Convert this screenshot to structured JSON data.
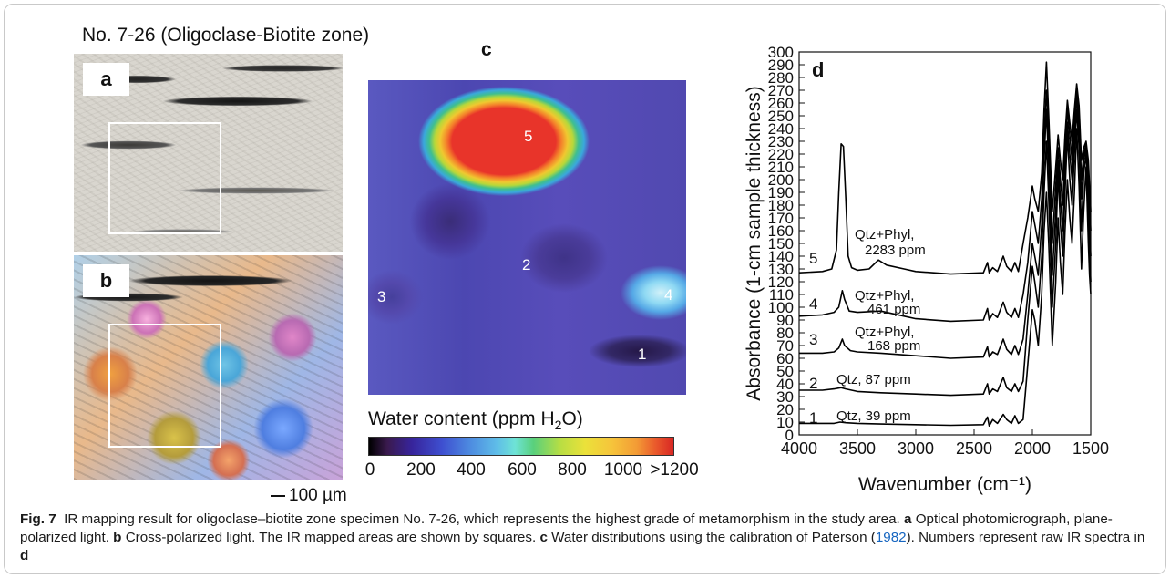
{
  "specimen_title": "No. 7-26 (Oligoclase-Biotite zone)",
  "panels": {
    "a": {
      "label": "a"
    },
    "b": {
      "label": "b"
    },
    "c": {
      "label": "c",
      "map_numbers": [
        "5",
        "2",
        "3",
        "4",
        "1"
      ]
    },
    "d": {
      "label": "d"
    }
  },
  "scale_bar": "100 µm",
  "colorbar": {
    "title_pre": "Water content (ppm H",
    "title_sub": "2",
    "title_post": "O)",
    "ticks": [
      "0",
      "200",
      "400",
      "600",
      "800",
      "1000",
      ">1200"
    ]
  },
  "chart_data": {
    "type": "line",
    "panel_label": "d",
    "xlabel": "Wavenumber (cm⁻¹)",
    "ylabel": "Absorbance (1-cm sample thickness)",
    "xlim": [
      4000,
      1500
    ],
    "ylim": [
      0,
      300
    ],
    "x_ticks": [
      4000,
      3500,
      3000,
      2500,
      2000,
      1500
    ],
    "y_ticks": [
      0,
      10,
      20,
      30,
      40,
      50,
      60,
      70,
      80,
      90,
      100,
      110,
      120,
      130,
      140,
      150,
      160,
      170,
      180,
      190,
      200,
      210,
      220,
      230,
      240,
      250,
      260,
      270,
      280,
      290,
      300
    ],
    "series": [
      {
        "name": "1",
        "annotation_line1": "Qtz, 39 ppm",
        "annotation_line2": "",
        "points": [
          [
            4000,
            9
          ],
          [
            3800,
            9
          ],
          [
            3700,
            9
          ],
          [
            3650,
            10
          ],
          [
            3600,
            9.5
          ],
          [
            3500,
            9
          ],
          [
            3300,
            8.5
          ],
          [
            3000,
            8
          ],
          [
            2700,
            7.5
          ],
          [
            2420,
            8
          ],
          [
            2385,
            14
          ],
          [
            2370,
            7
          ],
          [
            2340,
            12
          ],
          [
            2300,
            9
          ],
          [
            2250,
            16
          ],
          [
            2220,
            12
          ],
          [
            2180,
            9
          ],
          [
            2150,
            15
          ],
          [
            2120,
            9
          ],
          [
            2080,
            12
          ],
          [
            2040,
            55
          ],
          [
            2000,
            98
          ],
          [
            1980,
            90
          ],
          [
            1950,
            70
          ],
          [
            1920,
            110
          ],
          [
            1900,
            160
          ],
          [
            1880,
            190
          ],
          [
            1860,
            150
          ],
          [
            1830,
            70
          ],
          [
            1800,
            120
          ],
          [
            1780,
            170
          ],
          [
            1760,
            135
          ],
          [
            1740,
            110
          ],
          [
            1720,
            160
          ],
          [
            1700,
            200
          ],
          [
            1680,
            170
          ],
          [
            1660,
            150
          ],
          [
            1640,
            190
          ],
          [
            1620,
            240
          ],
          [
            1600,
            195
          ],
          [
            1580,
            130
          ],
          [
            1560,
            175
          ],
          [
            1540,
            210
          ],
          [
            1520,
            150
          ],
          [
            1510,
            125
          ],
          [
            1500,
            110
          ]
        ]
      },
      {
        "name": "2",
        "annotation_line1": "Qtz, 87 ppm",
        "annotation_line2": "",
        "points": [
          [
            4000,
            35
          ],
          [
            3800,
            35
          ],
          [
            3700,
            36
          ],
          [
            3640,
            37
          ],
          [
            3600,
            36
          ],
          [
            3500,
            34
          ],
          [
            3300,
            33
          ],
          [
            3000,
            32
          ],
          [
            2700,
            31
          ],
          [
            2420,
            32
          ],
          [
            2385,
            40
          ],
          [
            2370,
            32
          ],
          [
            2340,
            36
          ],
          [
            2300,
            34
          ],
          [
            2250,
            45
          ],
          [
            2220,
            37
          ],
          [
            2180,
            34
          ],
          [
            2150,
            40
          ],
          [
            2120,
            34
          ],
          [
            2080,
            42
          ],
          [
            2040,
            90
          ],
          [
            2000,
            132
          ],
          [
            1980,
            120
          ],
          [
            1950,
            100
          ],
          [
            1920,
            140
          ],
          [
            1900,
            190
          ],
          [
            1880,
            230
          ],
          [
            1860,
            185
          ],
          [
            1830,
            100
          ],
          [
            1800,
            150
          ],
          [
            1780,
            205
          ],
          [
            1760,
            165
          ],
          [
            1740,
            140
          ],
          [
            1720,
            190
          ],
          [
            1700,
            235
          ],
          [
            1680,
            200
          ],
          [
            1660,
            180
          ],
          [
            1640,
            220
          ],
          [
            1620,
            255
          ],
          [
            1600,
            225
          ],
          [
            1580,
            160
          ],
          [
            1560,
            205
          ],
          [
            1540,
            220
          ],
          [
            1520,
            180
          ],
          [
            1510,
            140
          ],
          [
            1500,
            120
          ]
        ]
      },
      {
        "name": "3",
        "annotation_line1": "Qtz+Phyl,",
        "annotation_line2": "168 ppm",
        "points": [
          [
            4000,
            64
          ],
          [
            3800,
            64
          ],
          [
            3700,
            65
          ],
          [
            3660,
            68
          ],
          [
            3630,
            75
          ],
          [
            3610,
            70
          ],
          [
            3560,
            66
          ],
          [
            3500,
            65
          ],
          [
            3300,
            64
          ],
          [
            3000,
            62
          ],
          [
            2700,
            60
          ],
          [
            2420,
            61
          ],
          [
            2385,
            69
          ],
          [
            2370,
            61
          ],
          [
            2340,
            65
          ],
          [
            2300,
            63
          ],
          [
            2250,
            75
          ],
          [
            2220,
            67
          ],
          [
            2180,
            63
          ],
          [
            2150,
            70
          ],
          [
            2120,
            63
          ],
          [
            2080,
            75
          ],
          [
            2040,
            110
          ],
          [
            2000,
            150
          ],
          [
            1980,
            140
          ],
          [
            1950,
            125
          ],
          [
            1920,
            165
          ],
          [
            1900,
            215
          ],
          [
            1880,
            255
          ],
          [
            1860,
            210
          ],
          [
            1830,
            125
          ],
          [
            1800,
            175
          ],
          [
            1780,
            215
          ],
          [
            1760,
            185
          ],
          [
            1740,
            160
          ],
          [
            1720,
            205
          ],
          [
            1700,
            245
          ],
          [
            1680,
            220
          ],
          [
            1660,
            200
          ],
          [
            1640,
            235
          ],
          [
            1620,
            265
          ],
          [
            1600,
            240
          ],
          [
            1580,
            185
          ],
          [
            1560,
            215
          ],
          [
            1540,
            225
          ],
          [
            1520,
            195
          ],
          [
            1510,
            160
          ],
          [
            1500,
            140
          ]
        ]
      },
      {
        "name": "4",
        "annotation_line1": "Qtz+Phyl,",
        "annotation_line2": "461 ppm",
        "points": [
          [
            4000,
            93
          ],
          [
            3800,
            94
          ],
          [
            3700,
            96
          ],
          [
            3660,
            100
          ],
          [
            3630,
            113
          ],
          [
            3610,
            106
          ],
          [
            3570,
            97
          ],
          [
            3500,
            96
          ],
          [
            3300,
            97
          ],
          [
            3100,
            93
          ],
          [
            3000,
            91
          ],
          [
            2700,
            89
          ],
          [
            2420,
            90
          ],
          [
            2385,
            99
          ],
          [
            2370,
            90
          ],
          [
            2340,
            95
          ],
          [
            2300,
            92
          ],
          [
            2250,
            104
          ],
          [
            2220,
            96
          ],
          [
            2180,
            92
          ],
          [
            2150,
            99
          ],
          [
            2120,
            92
          ],
          [
            2080,
            110
          ],
          [
            2040,
            135
          ],
          [
            2000,
            175
          ],
          [
            1980,
            165
          ],
          [
            1950,
            150
          ],
          [
            1920,
            185
          ],
          [
            1900,
            235
          ],
          [
            1880,
            270
          ],
          [
            1860,
            230
          ],
          [
            1830,
            150
          ],
          [
            1800,
            195
          ],
          [
            1780,
            225
          ],
          [
            1760,
            200
          ],
          [
            1740,
            180
          ],
          [
            1720,
            220
          ],
          [
            1700,
            255
          ],
          [
            1680,
            235
          ],
          [
            1660,
            215
          ],
          [
            1640,
            245
          ],
          [
            1620,
            270
          ],
          [
            1600,
            250
          ],
          [
            1580,
            200
          ],
          [
            1560,
            220
          ],
          [
            1540,
            228
          ],
          [
            1520,
            205
          ],
          [
            1510,
            180
          ],
          [
            1500,
            160
          ]
        ]
      },
      {
        "name": "5",
        "annotation_line1": "Qtz+Phyl,",
        "annotation_line2": "2283 ppm",
        "points": [
          [
            4000,
            127
          ],
          [
            3800,
            128
          ],
          [
            3720,
            130
          ],
          [
            3680,
            145
          ],
          [
            3660,
            190
          ],
          [
            3640,
            228
          ],
          [
            3620,
            226
          ],
          [
            3600,
            185
          ],
          [
            3580,
            140
          ],
          [
            3550,
            131
          ],
          [
            3500,
            129
          ],
          [
            3400,
            130
          ],
          [
            3320,
            137
          ],
          [
            3250,
            133
          ],
          [
            3100,
            130
          ],
          [
            3000,
            128
          ],
          [
            2700,
            126
          ],
          [
            2420,
            127
          ],
          [
            2385,
            135
          ],
          [
            2370,
            127
          ],
          [
            2340,
            131
          ],
          [
            2300,
            128
          ],
          [
            2250,
            140
          ],
          [
            2220,
            132
          ],
          [
            2180,
            128
          ],
          [
            2150,
            135
          ],
          [
            2120,
            128
          ],
          [
            2080,
            150
          ],
          [
            2040,
            170
          ],
          [
            2000,
            195
          ],
          [
            1980,
            185
          ],
          [
            1950,
            175
          ],
          [
            1920,
            205
          ],
          [
            1900,
            255
          ],
          [
            1880,
            292
          ],
          [
            1860,
            250
          ],
          [
            1830,
            175
          ],
          [
            1800,
            210
          ],
          [
            1780,
            235
          ],
          [
            1760,
            215
          ],
          [
            1740,
            200
          ],
          [
            1720,
            235
          ],
          [
            1700,
            262
          ],
          [
            1680,
            245
          ],
          [
            1660,
            230
          ],
          [
            1640,
            255
          ],
          [
            1620,
            275
          ],
          [
            1600,
            258
          ],
          [
            1580,
            215
          ],
          [
            1560,
            225
          ],
          [
            1540,
            230
          ],
          [
            1520,
            215
          ],
          [
            1510,
            195
          ],
          [
            1500,
            175
          ]
        ]
      }
    ]
  },
  "caption": {
    "fig_label": "Fig. 7",
    "text1": "IR mapping result for oligoclase–biotite zone specimen No. 7-26, which represents the highest grade of metamorphism in the study area.",
    "a_label": "a",
    "a_text": "Optical photomicrograph, plane-polarized light.",
    "b_label": "b",
    "b_text": "Cross-polarized light. The IR mapped areas are shown by squares.",
    "c_label": "c",
    "c_text": "Water distributions using the calibration of Paterson (",
    "citation": "1982",
    "c_text_end": "). Numbers represent raw IR spectra in",
    "d_label": "d"
  }
}
